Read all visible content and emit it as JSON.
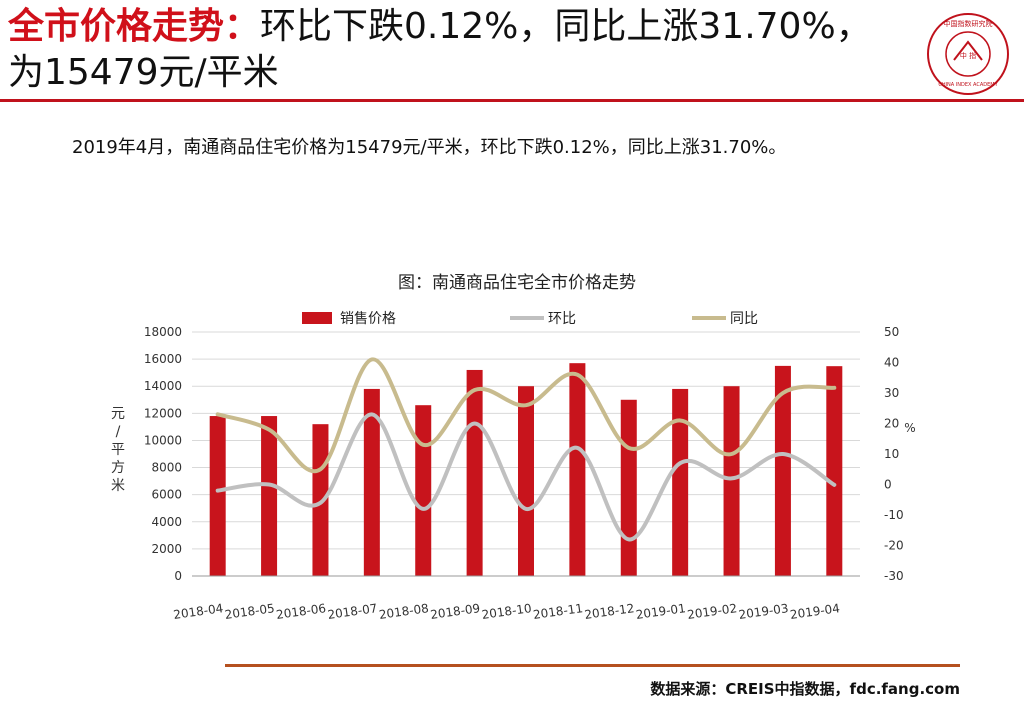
{
  "header": {
    "title_accent": "全市价格走势：",
    "title_rest": "环比下跌0.12%，同比上涨31.70%，为15479元/平米"
  },
  "logo": {
    "top_text": "中国指数研究院",
    "center_text": "中 指",
    "bottom_text": "CHINA INDEX ACADEMY",
    "color": "#c0121c"
  },
  "summary": "2019年4月，南通商品住宅价格为15479元/平米，环比下跌0.12%，同比上涨31.70%。",
  "chart_data": {
    "type": "bar",
    "title": "图：南通商品住宅全市价格走势",
    "categories": [
      "2018-04",
      "2018-05",
      "2018-06",
      "2018-07",
      "2018-08",
      "2018-09",
      "2018-10",
      "2018-11",
      "2018-12",
      "2019-01",
      "2019-02",
      "2019-03",
      "2019-04"
    ],
    "series": [
      {
        "name": "销售价格",
        "type": "bar",
        "axis": "left",
        "color": "#c8141c",
        "values": [
          11800,
          11800,
          11200,
          13800,
          12600,
          15200,
          14000,
          15700,
          13000,
          13800,
          14000,
          15500,
          15479
        ]
      },
      {
        "name": "环比",
        "type": "line",
        "axis": "right",
        "color": "#c0c0c0",
        "values": [
          -2,
          0,
          -6,
          23,
          -8,
          20,
          -8,
          12,
          -18,
          7,
          2,
          10,
          -0.12
        ]
      },
      {
        "name": "同比",
        "type": "line",
        "axis": "right",
        "color": "#c8bb8e",
        "values": [
          23,
          18,
          5,
          41,
          13,
          31,
          26,
          36,
          12,
          21,
          10,
          30,
          31.7
        ]
      }
    ],
    "ylabel": "元/平方米",
    "y2label": "%",
    "ylim": [
      0,
      18000
    ],
    "y2lim": [
      -30,
      50
    ],
    "yticks": [
      0,
      2000,
      4000,
      6000,
      8000,
      10000,
      12000,
      14000,
      16000,
      18000
    ],
    "y2ticks": [
      -30,
      -20,
      -10,
      0,
      10,
      20,
      30,
      40,
      50
    ],
    "grid": true,
    "legend": "top"
  },
  "footer": {
    "source": "数据来源：CREIS中指数据，fdc.fang.com"
  }
}
